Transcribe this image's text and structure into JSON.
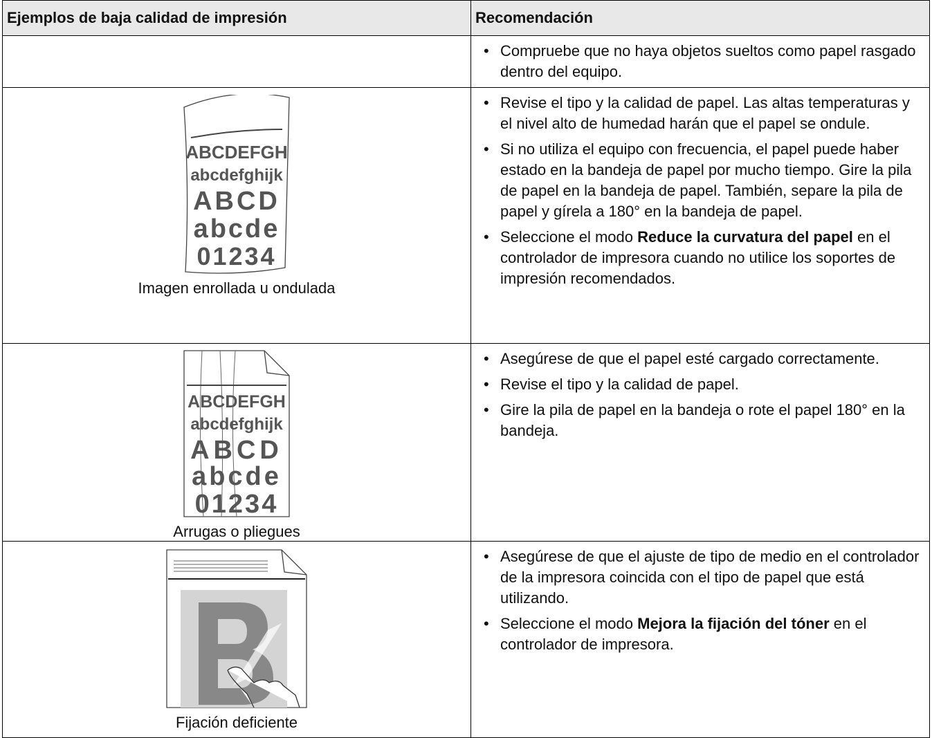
{
  "header": {
    "columns": [
      "Ejemplos de baja calidad de impresión",
      "Recomendación"
    ]
  },
  "table": {
    "rows": [
      {
        "bullets": [
          [
            {
              "text": "Compruebe que no haya objetos sueltos como papel rasgado dentro del equipo.",
              "bold": false
            }
          ]
        ]
      },
      {
        "image_text": [
          "ABCDEFGH",
          "abcdefghijk",
          "ABCD",
          "abcde",
          "01234"
        ],
        "caption": "Imagen enrollada u ondulada",
        "bullets": [
          [
            {
              "text": "Revise el tipo y la calidad de papel. Las altas temperaturas y el nivel alto de humedad harán que el papel se ondule.",
              "bold": false
            }
          ],
          [
            {
              "text": "Si no utiliza el equipo con frecuencia, el papel puede haber estado en la bandeja de papel por mucho tiempo. Gire la pila de papel en la bandeja de papel. También, separe la pila de papel y gírela a 180° en la bandeja de papel.",
              "bold": false
            }
          ],
          [
            {
              "text": "Seleccione el modo ",
              "bold": false
            },
            {
              "text": "Reduce la curvatura del papel",
              "bold": true
            },
            {
              "text": " en el controlador de impresora cuando no utilice los soportes de impresión recomendados.",
              "bold": false
            }
          ]
        ]
      },
      {
        "image_text": [
          "ABCDEFGH",
          "abcdefghijk",
          "ABCD",
          "abcde",
          "01234"
        ],
        "caption": "Arrugas o pliegues",
        "bullets": [
          [
            {
              "text": "Asegúrese de que el papel esté cargado correctamente.",
              "bold": false
            }
          ],
          [
            {
              "text": "Revise el tipo y la calidad de papel.",
              "bold": false
            }
          ],
          [
            {
              "text": "Gire la pila de papel en la bandeja o rote el papel 180° en la bandeja.",
              "bold": false
            }
          ]
        ]
      },
      {
        "caption": "Fijación deficiente",
        "bullets": [
          [
            {
              "text": "Asegúrese de que el ajuste de tipo de medio en el controlador de la impresora coincida con el tipo de papel que está utilizando.",
              "bold": false
            }
          ],
          [
            {
              "text": "Seleccione el modo ",
              "bold": false
            },
            {
              "text": "Mejora la fijación del tóner",
              "bold": true
            },
            {
              "text": " en el controlador de impresora.",
              "bold": false
            }
          ]
        ]
      }
    ]
  }
}
